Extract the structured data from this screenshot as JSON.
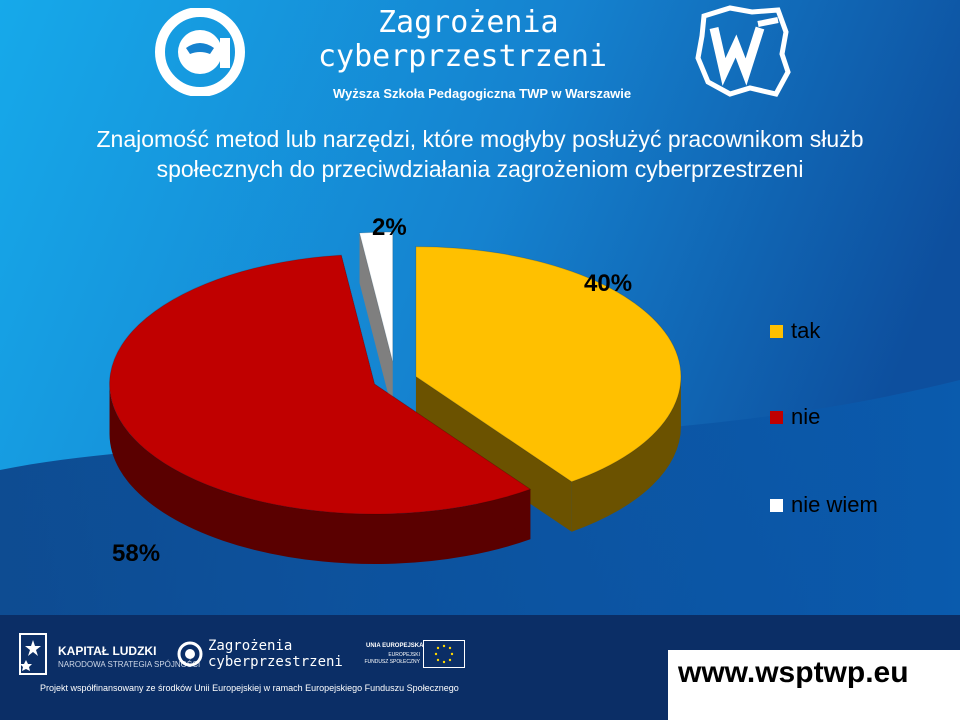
{
  "header": {
    "brand_title_line1": "Zagrożenia",
    "brand_title_line2": "cyberprzestrzeni",
    "brand_subtitle": "Wyższa Szkoła Pedagogiczna TWP w Warszawie",
    "at_logo_icon": "at-sign-mask-icon",
    "university_logo_icon": "poland-map-w-icon"
  },
  "chart_data": {
    "type": "pie",
    "title_line1": "Znajomość metod lub narzędzi, które mogłyby posłużyć pracownikom służb",
    "title_line2": "społecznych do przeciwdziałania zagrożeniom cyberprzestrzeni",
    "series": [
      {
        "name": "tak",
        "value": 40,
        "label": "40%",
        "color": "#FFC000",
        "side_color": "#6B5200"
      },
      {
        "name": "nie",
        "value": 58,
        "label": "58%",
        "color": "#C00000",
        "side_color": "#5A0000"
      },
      {
        "name": "nie wiem",
        "value": 2,
        "label": "2%",
        "color": "#FFFFFF",
        "side_color": "#7F7F7F"
      }
    ],
    "legend_position": "right"
  },
  "footer": {
    "kapital_title": "KAPITAŁ LUDZKI",
    "kapital_sub": "NARODOWA STRATEGIA SPÓJNOŚCI",
    "logo_line1": "Zagrożenia",
    "logo_line2": "cyberprzestrzeni",
    "eu_title": "UNIA EUROPEJSKA",
    "eu_sub1": "EUROPEJSKI",
    "eu_sub2": "FUNDUSZ SPOŁECZNY",
    "project_note": "Projekt współfinansowany ze środków Unii Europejskiej w ramach Europejskiego Funduszu Społecznego",
    "url": "www.wsptwp.eu"
  },
  "colors": {
    "bg_light": "#1AA6E8",
    "bg_dark": "#0A3F8C",
    "footer_bg": "#0B2E66"
  }
}
